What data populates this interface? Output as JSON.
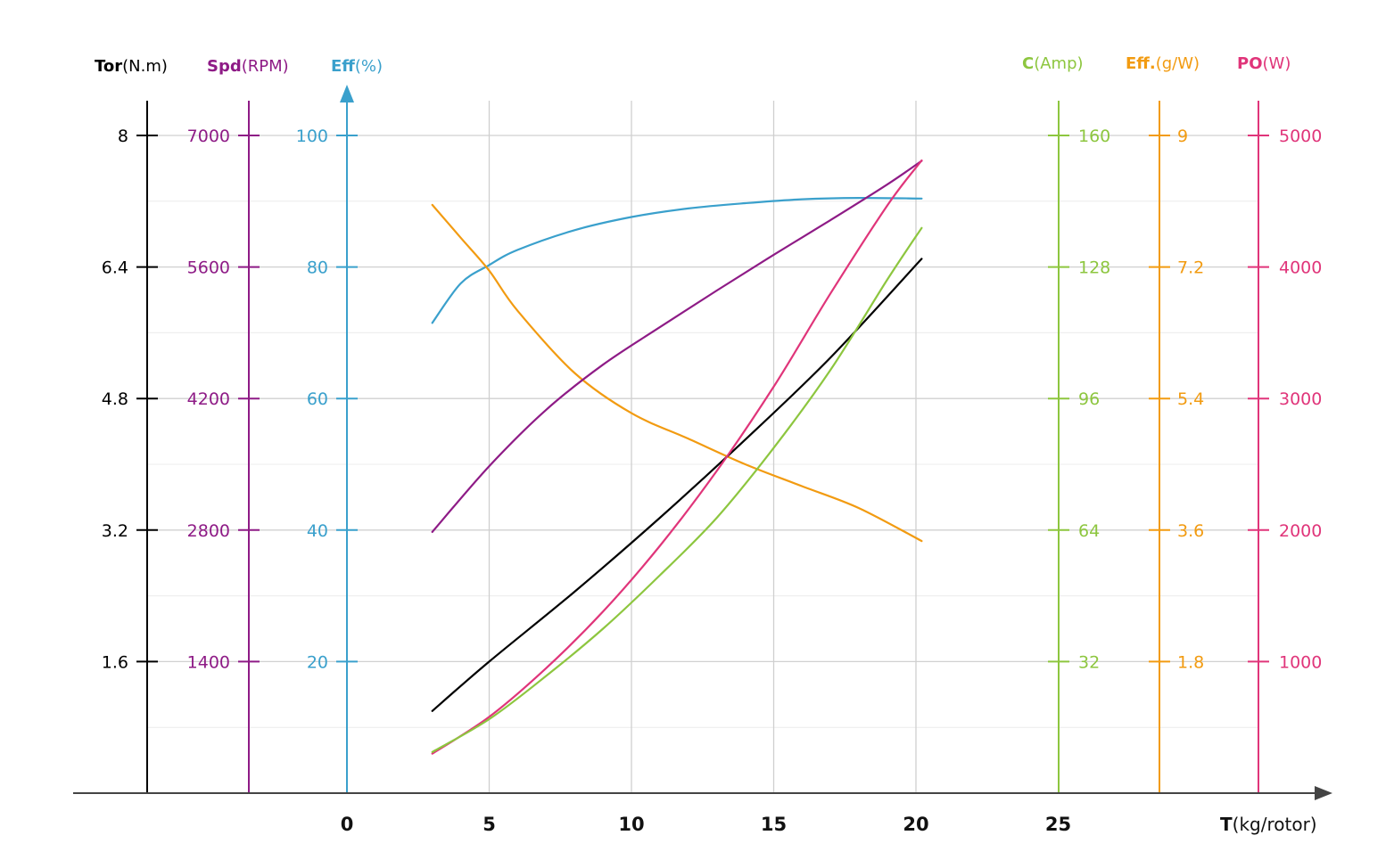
{
  "chart_data": {
    "type": "line",
    "xlabel": {
      "bold": "T",
      "unit": "(kg/rotor)"
    },
    "x_ticks": [
      "0",
      "5",
      "10",
      "15",
      "20",
      "25"
    ],
    "xlim": [
      0,
      25
    ],
    "grid": true,
    "axes": [
      {
        "key": "tor",
        "bold": "Tor",
        "unit": "(N.m)",
        "color": "#000000",
        "side": "left",
        "ticks": [
          "1.6",
          "3.2",
          "4.8",
          "6.4",
          "8"
        ],
        "range": [
          0,
          8
        ]
      },
      {
        "key": "spd",
        "bold": "Spd",
        "unit": "(RPM)",
        "color": "#8e1b86",
        "side": "left",
        "ticks": [
          "1400",
          "2800",
          "4200",
          "5600",
          "7000"
        ],
        "range": [
          0,
          7000
        ]
      },
      {
        "key": "eff",
        "bold": "Eff",
        "unit": "(%)",
        "color": "#3aa0cc",
        "side": "left",
        "ticks": [
          "20",
          "40",
          "60",
          "80",
          "100"
        ],
        "range": [
          0,
          100
        ]
      },
      {
        "key": "c",
        "bold": "C",
        "unit": "(Amp)",
        "color": "#8dc63f",
        "side": "right",
        "ticks": [
          "32",
          "64",
          "96",
          "128",
          "160"
        ],
        "range": [
          0,
          160
        ]
      },
      {
        "key": "effg",
        "bold": "Eff.",
        "unit": "(g/W)",
        "color": "#f29b11",
        "side": "right",
        "ticks": [
          "1.8",
          "3.6",
          "5.4",
          "7.2",
          "9"
        ],
        "range": [
          0,
          9
        ]
      },
      {
        "key": "po",
        "bold": "PO",
        "unit": "(W)",
        "color": "#e0357a",
        "side": "right",
        "ticks": [
          "1000",
          "2000",
          "3000",
          "4000",
          "5000"
        ],
        "range": [
          0,
          5000
        ]
      }
    ],
    "series": [
      {
        "axis": "eff",
        "color": "#3aa0cc",
        "x": [
          3,
          4,
          5,
          6,
          8,
          10,
          12,
          14,
          16,
          18,
          20.2
        ],
        "y": [
          71.5,
          77.5,
          80.3,
          82.6,
          85.6,
          87.6,
          88.9,
          89.7,
          90.3,
          90.5,
          90.4
        ]
      },
      {
        "axis": "effg",
        "color": "#f29b11",
        "x": [
          3,
          4,
          5,
          6,
          8,
          10,
          12,
          14,
          16,
          18,
          20.2
        ],
        "y": [
          8.05,
          7.6,
          7.15,
          6.6,
          5.75,
          5.2,
          4.85,
          4.5,
          4.2,
          3.9,
          3.45
        ]
      },
      {
        "axis": "spd",
        "color": "#8e1b86",
        "x": [
          3,
          5,
          7,
          9,
          11,
          13,
          15,
          17,
          19,
          20.2
        ],
        "y": [
          2780,
          3480,
          4080,
          4560,
          4960,
          5350,
          5730,
          6100,
          6480,
          6730
        ]
      },
      {
        "axis": "tor",
        "color": "#000000",
        "x": [
          3,
          5,
          8,
          11,
          14,
          17,
          20.2
        ],
        "y": [
          1.0,
          1.6,
          2.45,
          3.35,
          4.3,
          5.3,
          6.5
        ]
      },
      {
        "axis": "po",
        "color": "#e0357a",
        "x": [
          3,
          5,
          7,
          9,
          11,
          13,
          15,
          17,
          19,
          20.2
        ],
        "y": [
          300,
          580,
          950,
          1380,
          1880,
          2450,
          3090,
          3800,
          4470,
          4810
        ]
      },
      {
        "axis": "c",
        "color": "#8dc63f",
        "x": [
          3,
          5,
          7,
          9,
          11,
          13,
          15,
          17,
          19,
          20.2
        ],
        "y": [
          10,
          18,
          28.5,
          40,
          53,
          67,
          84,
          103,
          125,
          137.5
        ]
      }
    ]
  }
}
